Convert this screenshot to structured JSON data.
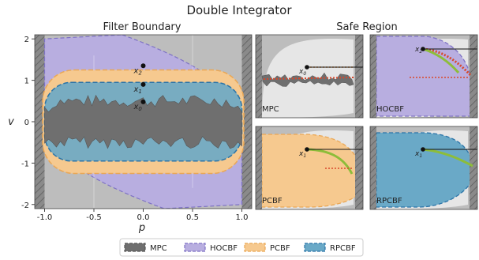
{
  "figure": {
    "title": "Double Integrator",
    "left_title": "Filter Boundary",
    "right_title": "Safe Region"
  },
  "colors": {
    "panel_bg": "#bdbdbd",
    "light_region": "#e6e6e6",
    "dark_region": "#8c8c8c",
    "hocbf": "#b8aee0",
    "hocbf_edge": "#7e72c4",
    "pcbf": "#f6c98f",
    "pcbf_edge": "#eaa755",
    "rpcbf": "#6aa9c7",
    "rpcbf_edge": "#2b74a8",
    "mpc": "#6f6f6f",
    "green_traj": "#8dbd3a",
    "red_traj": "#d9482b"
  },
  "chart_data": [
    {
      "type": "area",
      "title": "Filter Boundary",
      "xlabel": "p",
      "ylabel": "v",
      "xlim": [
        -1.1,
        1.1
      ],
      "ylim": [
        -2.1,
        2.1
      ],
      "xticks": [
        "-1.0",
        "-0.5",
        "0.0",
        "0.5",
        "1.0"
      ],
      "yticks": [
        "-2",
        "-1",
        "0",
        "1",
        "2"
      ],
      "points": [
        {
          "label": "x2",
          "p": 0.0,
          "v": 1.35
        },
        {
          "label": "x1",
          "p": 0.0,
          "v": 0.9
        },
        {
          "label": "x0",
          "p": 0.0,
          "v": 0.48
        }
      ],
      "series": [
        {
          "name": "MPC",
          "p_range": [
            -1.0,
            1.0
          ],
          "v_range": [
            -0.5,
            0.5
          ]
        },
        {
          "name": "HOCBF",
          "boundary": "v^2 = 2*(1 - |p|) strip, p in [-1, 1]"
        },
        {
          "name": "PCBF",
          "p_range": [
            -1.02,
            1.02
          ],
          "v_range": [
            -1.25,
            1.25
          ]
        },
        {
          "name": "RPCBF",
          "p_range": [
            -1.0,
            1.0
          ],
          "v_range": [
            -0.95,
            0.95
          ]
        }
      ]
    },
    {
      "type": "area",
      "title": "MPC"
    },
    {
      "type": "area",
      "title": "HOCBF"
    },
    {
      "type": "area",
      "title": "PCBF"
    },
    {
      "type": "area",
      "title": "RPCBF"
    }
  ],
  "panels": {
    "mpc": {
      "label": "MPC",
      "point": "x0"
    },
    "hocbf": {
      "label": "HOCBF",
      "point": "x2"
    },
    "pcbf": {
      "label": "PCBF",
      "point": "x1"
    },
    "rpcbf": {
      "label": "RPCBF",
      "point": "x1"
    }
  },
  "legend": {
    "items": [
      {
        "name": "MPC"
      },
      {
        "name": "HOCBF"
      },
      {
        "name": "PCBF"
      },
      {
        "name": "RPCBF"
      }
    ]
  }
}
